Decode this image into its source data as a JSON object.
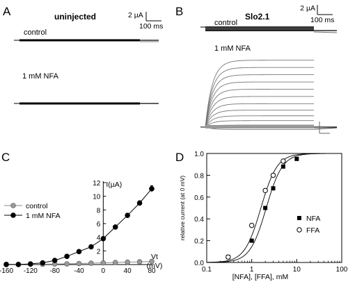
{
  "panels": {
    "A": {
      "letter": "A",
      "title": "uninjected",
      "scale_current": "2 µA",
      "scale_time": "100 ms",
      "trace_top_label": "control",
      "trace_bottom_label": "1 mM NFA"
    },
    "B": {
      "letter": "B",
      "title": "Slo2.1",
      "scale_current": "2 µA",
      "scale_time": "100 ms",
      "trace_top_label": "control",
      "trace_bottom_label": "1 mM NFA",
      "nfa_steady_levels_uA": [
        -0.3,
        0.25,
        0.8,
        1.4,
        2.1,
        2.9,
        3.8,
        4.7,
        5.6,
        6.5,
        7.4,
        8.3
      ]
    },
    "C": {
      "letter": "C"
    },
    "D": {
      "letter": "D"
    }
  },
  "chart_data": [
    {
      "panel": "C",
      "type": "line",
      "title": "",
      "xlabel": "Vt (mV)",
      "xlabel_line1": "Vt",
      "xlabel_line2": "(mV)",
      "ylabel": "I(µA)",
      "xlim": [
        -160,
        80
      ],
      "ylim": [
        0,
        12
      ],
      "x_ticks": [
        -160,
        -120,
        -80,
        -40,
        0,
        40,
        80
      ],
      "x_tick_labels": [
        "-160",
        "-120",
        "-80",
        "-40",
        "0",
        "40",
        "80"
      ],
      "y_ticks": [
        2,
        4,
        6,
        8,
        10,
        12
      ],
      "y_tick_labels": [
        "2",
        "4",
        "6",
        "8",
        "10",
        "12"
      ],
      "legend_position": "left-middle",
      "series": [
        {
          "name": "control",
          "color": "#888888",
          "marker": "circle-gray",
          "x": [
            -160,
            -140,
            -120,
            -100,
            -80,
            -60,
            -40,
            -20,
            0,
            20,
            40,
            60,
            80
          ],
          "y": [
            0.05,
            0.05,
            0.05,
            0.05,
            0.08,
            0.1,
            0.15,
            0.2,
            0.25,
            0.3,
            0.35,
            0.4,
            0.45
          ]
        },
        {
          "name": "1 mM NFA",
          "color": "#000000",
          "marker": "circle-black",
          "x": [
            -160,
            -140,
            -120,
            -100,
            -80,
            -60,
            -40,
            -20,
            0,
            20,
            40,
            60,
            80
          ],
          "y": [
            0.0,
            0.0,
            0.1,
            0.25,
            0.6,
            1.2,
            1.9,
            2.6,
            3.8,
            5.5,
            7.2,
            9.0,
            11.1
          ],
          "err": [
            0,
            0,
            0,
            0,
            0,
            0.1,
            0.15,
            0.15,
            0.2,
            0.25,
            0.3,
            0.35,
            0.45
          ]
        }
      ]
    },
    {
      "panel": "D",
      "type": "scatter",
      "title": "",
      "xlabel": "[NFA], [FFA], mM",
      "ylabel": "relative current (at 0 mV)",
      "x_scale": "log",
      "xlim": [
        0.1,
        100
      ],
      "ylim": [
        0,
        1
      ],
      "x_ticks": [
        0.1,
        1,
        10,
        100
      ],
      "x_tick_labels": [
        "0.1",
        "1",
        "10",
        "100"
      ],
      "y_ticks": [
        0,
        0.2,
        0.4,
        0.6,
        0.8,
        1.0
      ],
      "y_tick_labels": [
        "0.0",
        "0.2",
        "0.4",
        "0.6",
        "0.8",
        "1.0"
      ],
      "legend_position": "right-middle",
      "series": [
        {
          "name": "NFA",
          "marker": "square-filled",
          "x": [
            0.3,
            1,
            2,
            3,
            5,
            10
          ],
          "y": [
            0.05,
            0.2,
            0.5,
            0.68,
            0.88,
            0.95
          ],
          "fit_ec50": 2.1,
          "fit_hill": 2.4
        },
        {
          "name": "FFA",
          "marker": "circle-open",
          "x": [
            0.3,
            1,
            2,
            3,
            5
          ],
          "y": [
            0.05,
            0.34,
            0.66,
            0.8,
            0.93
          ],
          "fit_ec50": 1.6,
          "fit_hill": 2.4
        }
      ]
    }
  ]
}
